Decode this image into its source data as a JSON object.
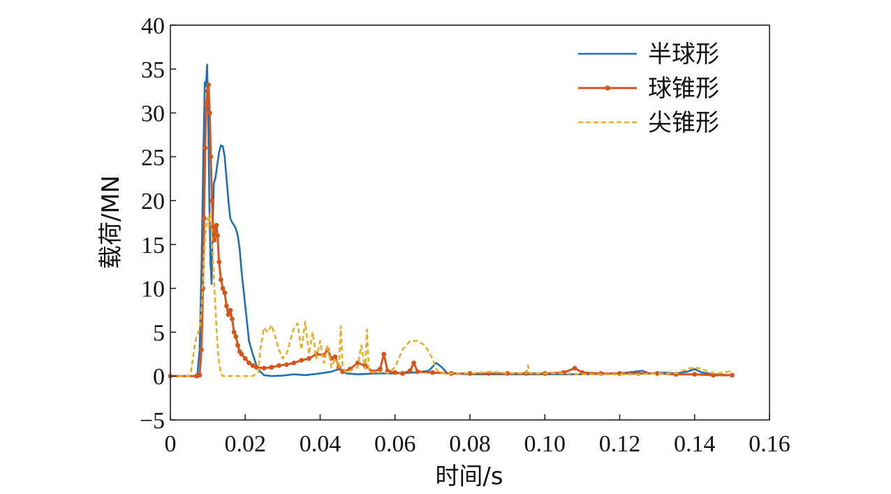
{
  "chart_data": {
    "type": "line",
    "xlabel": "时间/s",
    "ylabel": "载荷/MN",
    "xlim": [
      0,
      0.16
    ],
    "ylim": [
      -5,
      40
    ],
    "xticks": [
      0,
      0.02,
      0.04,
      0.06,
      0.08,
      0.1,
      0.12,
      0.14,
      0.16
    ],
    "xtick_labels": [
      "0",
      "0.02",
      "0.04",
      "0.06",
      "0.08",
      "0.10",
      "0.12",
      "0.14",
      "0.16"
    ],
    "yticks": [
      -5,
      0,
      5,
      10,
      15,
      20,
      25,
      30,
      35,
      40
    ],
    "ytick_labels": [
      "−5",
      "0",
      "5",
      "10",
      "15",
      "20",
      "25",
      "30",
      "35",
      "40"
    ],
    "grid": false,
    "legend_position": "top-right",
    "series": [
      {
        "name": "半球形",
        "color": "#1f6fb4",
        "style": "solid",
        "points": [
          [
            0.0,
            0.0
          ],
          [
            0.0065,
            0.0
          ],
          [
            0.0072,
            0.1
          ],
          [
            0.0078,
            3.0
          ],
          [
            0.0083,
            12.0
          ],
          [
            0.0088,
            25.0
          ],
          [
            0.0092,
            33.5
          ],
          [
            0.0095,
            33.0
          ],
          [
            0.0098,
            35.5
          ],
          [
            0.0101,
            30.0
          ],
          [
            0.0104,
            20.0
          ],
          [
            0.0107,
            13.0
          ],
          [
            0.011,
            10.5
          ],
          [
            0.0113,
            17.0
          ],
          [
            0.0116,
            22.0
          ],
          [
            0.012,
            22.5
          ],
          [
            0.0125,
            24.0
          ],
          [
            0.013,
            25.5
          ],
          [
            0.0135,
            26.3
          ],
          [
            0.014,
            26.2
          ],
          [
            0.0145,
            25.0
          ],
          [
            0.015,
            22.5
          ],
          [
            0.0155,
            20.0
          ],
          [
            0.016,
            18.0
          ],
          [
            0.0165,
            17.5
          ],
          [
            0.017,
            17.2
          ],
          [
            0.0175,
            16.8
          ],
          [
            0.018,
            16.0
          ],
          [
            0.0185,
            14.5
          ],
          [
            0.019,
            12.0
          ],
          [
            0.0195,
            10.0
          ],
          [
            0.02,
            8.0
          ],
          [
            0.0205,
            6.0
          ],
          [
            0.021,
            4.0
          ],
          [
            0.022,
            2.5
          ],
          [
            0.023,
            1.2
          ],
          [
            0.024,
            0.5
          ],
          [
            0.025,
            0.1
          ],
          [
            0.027,
            0.0
          ],
          [
            0.03,
            0.05
          ],
          [
            0.033,
            0.2
          ],
          [
            0.036,
            0.1
          ],
          [
            0.04,
            0.3
          ],
          [
            0.043,
            0.5
          ],
          [
            0.045,
            0.8
          ],
          [
            0.047,
            0.3
          ],
          [
            0.05,
            0.2
          ],
          [
            0.055,
            0.3
          ],
          [
            0.06,
            0.3
          ],
          [
            0.065,
            0.4
          ],
          [
            0.069,
            0.6
          ],
          [
            0.071,
            1.5
          ],
          [
            0.0725,
            1.0
          ],
          [
            0.074,
            0.3
          ],
          [
            0.08,
            0.2
          ],
          [
            0.09,
            0.2
          ],
          [
            0.1,
            0.2
          ],
          [
            0.11,
            0.2
          ],
          [
            0.12,
            0.3
          ],
          [
            0.126,
            0.6
          ],
          [
            0.128,
            0.3
          ],
          [
            0.132,
            0.4
          ],
          [
            0.135,
            0.3
          ],
          [
            0.138,
            0.5
          ],
          [
            0.14,
            0.8
          ],
          [
            0.142,
            0.4
          ],
          [
            0.145,
            0.2
          ],
          [
            0.15,
            0.1
          ]
        ]
      },
      {
        "name": "球锥形",
        "color": "#d4561c",
        "style": "solid-markers",
        "points": [
          [
            0.0,
            0.0
          ],
          [
            0.007,
            0.0
          ],
          [
            0.0078,
            0.1
          ],
          [
            0.0083,
            3.0
          ],
          [
            0.0087,
            10.0
          ],
          [
            0.009,
            18.0
          ],
          [
            0.0093,
            26.0
          ],
          [
            0.0096,
            31.0
          ],
          [
            0.0099,
            32.5
          ],
          [
            0.0102,
            33.2
          ],
          [
            0.0105,
            30.0
          ],
          [
            0.0108,
            25.0
          ],
          [
            0.0111,
            20.0
          ],
          [
            0.0114,
            17.0
          ],
          [
            0.0117,
            15.5
          ],
          [
            0.012,
            16.5
          ],
          [
            0.0123,
            17.2
          ],
          [
            0.0126,
            16.0
          ],
          [
            0.013,
            13.0
          ],
          [
            0.0135,
            11.0
          ],
          [
            0.014,
            10.0
          ],
          [
            0.0145,
            9.5
          ],
          [
            0.015,
            8.0
          ],
          [
            0.0155,
            7.0
          ],
          [
            0.016,
            7.5
          ],
          [
            0.0165,
            6.5
          ],
          [
            0.017,
            5.0
          ],
          [
            0.0175,
            4.5
          ],
          [
            0.018,
            3.5
          ],
          [
            0.0185,
            2.8
          ],
          [
            0.019,
            2.5
          ],
          [
            0.02,
            2.0
          ],
          [
            0.021,
            1.5
          ],
          [
            0.022,
            1.2
          ],
          [
            0.023,
            1.0
          ],
          [
            0.025,
            0.9
          ],
          [
            0.027,
            1.0
          ],
          [
            0.029,
            1.2
          ],
          [
            0.031,
            1.3
          ],
          [
            0.033,
            1.5
          ],
          [
            0.035,
            1.8
          ],
          [
            0.037,
            2.0
          ],
          [
            0.039,
            2.5
          ],
          [
            0.041,
            2.4
          ],
          [
            0.042,
            3.0
          ],
          [
            0.043,
            2.0
          ],
          [
            0.044,
            2.2
          ],
          [
            0.045,
            1.0
          ],
          [
            0.046,
            0.5
          ],
          [
            0.048,
            0.8
          ],
          [
            0.05,
            1.5
          ],
          [
            0.052,
            1.2
          ],
          [
            0.054,
            0.5
          ],
          [
            0.056,
            0.8
          ],
          [
            0.057,
            2.5
          ],
          [
            0.058,
            0.6
          ],
          [
            0.06,
            0.4
          ],
          [
            0.062,
            0.3
          ],
          [
            0.064,
            0.6
          ],
          [
            0.065,
            1.5
          ],
          [
            0.066,
            0.5
          ],
          [
            0.07,
            0.4
          ],
          [
            0.075,
            0.3
          ],
          [
            0.08,
            0.3
          ],
          [
            0.085,
            0.3
          ],
          [
            0.09,
            0.3
          ],
          [
            0.095,
            0.3
          ],
          [
            0.1,
            0.3
          ],
          [
            0.105,
            0.4
          ],
          [
            0.108,
            0.9
          ],
          [
            0.11,
            0.4
          ],
          [
            0.115,
            0.3
          ],
          [
            0.12,
            0.3
          ],
          [
            0.125,
            0.3
          ],
          [
            0.13,
            0.3
          ],
          [
            0.135,
            0.2
          ],
          [
            0.14,
            0.2
          ],
          [
            0.145,
            0.1
          ],
          [
            0.15,
            0.1
          ]
        ]
      },
      {
        "name": "尖锥形",
        "color": "#e8ad2b",
        "style": "dashed",
        "points": [
          [
            0.0,
            0.0
          ],
          [
            0.005,
            0.0
          ],
          [
            0.0055,
            0.5
          ],
          [
            0.006,
            2.0
          ],
          [
            0.0065,
            3.5
          ],
          [
            0.007,
            4.5
          ],
          [
            0.0075,
            5.0
          ],
          [
            0.008,
            6.0
          ],
          [
            0.0085,
            9.0
          ],
          [
            0.009,
            14.0
          ],
          [
            0.0095,
            17.0
          ],
          [
            0.01,
            18.0
          ],
          [
            0.0103,
            17.0
          ],
          [
            0.0106,
            18.5
          ],
          [
            0.011,
            17.0
          ],
          [
            0.0115,
            12.0
          ],
          [
            0.012,
            8.0
          ],
          [
            0.0125,
            4.0
          ],
          [
            0.013,
            1.5
          ],
          [
            0.0135,
            0.3
          ],
          [
            0.014,
            0.0
          ],
          [
            0.018,
            0.0
          ],
          [
            0.022,
            0.0
          ],
          [
            0.0235,
            0.5
          ],
          [
            0.024,
            3.0
          ],
          [
            0.025,
            5.5
          ],
          [
            0.026,
            5.0
          ],
          [
            0.027,
            5.8
          ],
          [
            0.028,
            4.5
          ],
          [
            0.029,
            3.0
          ],
          [
            0.03,
            2.0
          ],
          [
            0.031,
            2.5
          ],
          [
            0.032,
            4.0
          ],
          [
            0.033,
            5.5
          ],
          [
            0.034,
            6.0
          ],
          [
            0.035,
            3.0
          ],
          [
            0.036,
            6.2
          ],
          [
            0.037,
            2.5
          ],
          [
            0.038,
            5.0
          ],
          [
            0.039,
            2.0
          ],
          [
            0.04,
            4.0
          ],
          [
            0.041,
            1.5
          ],
          [
            0.042,
            3.5
          ],
          [
            0.043,
            1.0
          ],
          [
            0.044,
            2.0
          ],
          [
            0.045,
            1.0
          ],
          [
            0.0455,
            5.7
          ],
          [
            0.046,
            1.0
          ],
          [
            0.047,
            0.4
          ],
          [
            0.048,
            0.6
          ],
          [
            0.05,
            1.0
          ],
          [
            0.051,
            3.5
          ],
          [
            0.052,
            0.8
          ],
          [
            0.0525,
            5.3
          ],
          [
            0.053,
            0.5
          ],
          [
            0.055,
            0.4
          ],
          [
            0.057,
            0.5
          ],
          [
            0.058,
            0.3
          ],
          [
            0.06,
            1.0
          ],
          [
            0.062,
            3.0
          ],
          [
            0.064,
            4.0
          ],
          [
            0.066,
            4.0
          ],
          [
            0.068,
            3.5
          ],
          [
            0.07,
            2.0
          ],
          [
            0.071,
            0.8
          ],
          [
            0.072,
            0.3
          ],
          [
            0.075,
            0.3
          ],
          [
            0.08,
            0.3
          ],
          [
            0.086,
            0.5
          ],
          [
            0.09,
            0.3
          ],
          [
            0.095,
            0.3
          ],
          [
            0.0955,
            1.2
          ],
          [
            0.096,
            0.3
          ],
          [
            0.1,
            0.3
          ],
          [
            0.105,
            0.3
          ],
          [
            0.11,
            0.2
          ],
          [
            0.115,
            0.2
          ],
          [
            0.12,
            0.2
          ],
          [
            0.125,
            0.2
          ],
          [
            0.13,
            0.3
          ],
          [
            0.135,
            0.3
          ],
          [
            0.138,
            0.8
          ],
          [
            0.14,
            1.0
          ],
          [
            0.142,
            0.8
          ],
          [
            0.144,
            0.4
          ],
          [
            0.146,
            0.3
          ],
          [
            0.148,
            0.4
          ],
          [
            0.15,
            0.6
          ]
        ]
      }
    ]
  }
}
